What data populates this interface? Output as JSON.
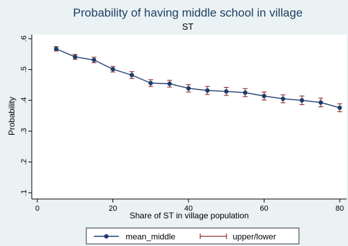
{
  "chart_data": {
    "type": "line",
    "title": "Probability of having middle school in village",
    "subtitle": "ST",
    "xlabel": "Share of ST in village population",
    "ylabel": "Probability",
    "xlim": [
      0,
      80
    ],
    "ylim": [
      0.1,
      0.6
    ],
    "x_ticks": [
      "0",
      "20",
      "40",
      "60",
      "80"
    ],
    "y_ticks": [
      ".1",
      ".2",
      ".3",
      ".4",
      ".5",
      ".6"
    ],
    "grid": false,
    "legend_position": "bottom",
    "x": [
      5,
      10,
      15,
      20,
      25,
      30,
      35,
      40,
      45,
      50,
      55,
      60,
      65,
      70,
      75,
      80
    ],
    "series": [
      {
        "name": "mean_middle",
        "color": "#1f3d6b",
        "values": [
          0.567,
          0.541,
          0.531,
          0.501,
          0.482,
          0.456,
          0.454,
          0.439,
          0.432,
          0.429,
          0.425,
          0.414,
          0.405,
          0.4,
          0.393,
          0.376
        ]
      },
      {
        "name": "upper/lower",
        "color": "#8b2c2c",
        "upper": [
          0.574,
          0.549,
          0.54,
          0.51,
          0.493,
          0.467,
          0.465,
          0.451,
          0.445,
          0.442,
          0.438,
          0.427,
          0.418,
          0.414,
          0.407,
          0.389
        ],
        "lower": [
          0.56,
          0.533,
          0.522,
          0.492,
          0.471,
          0.445,
          0.443,
          0.427,
          0.419,
          0.416,
          0.412,
          0.401,
          0.392,
          0.386,
          0.379,
          0.363
        ]
      }
    ]
  }
}
